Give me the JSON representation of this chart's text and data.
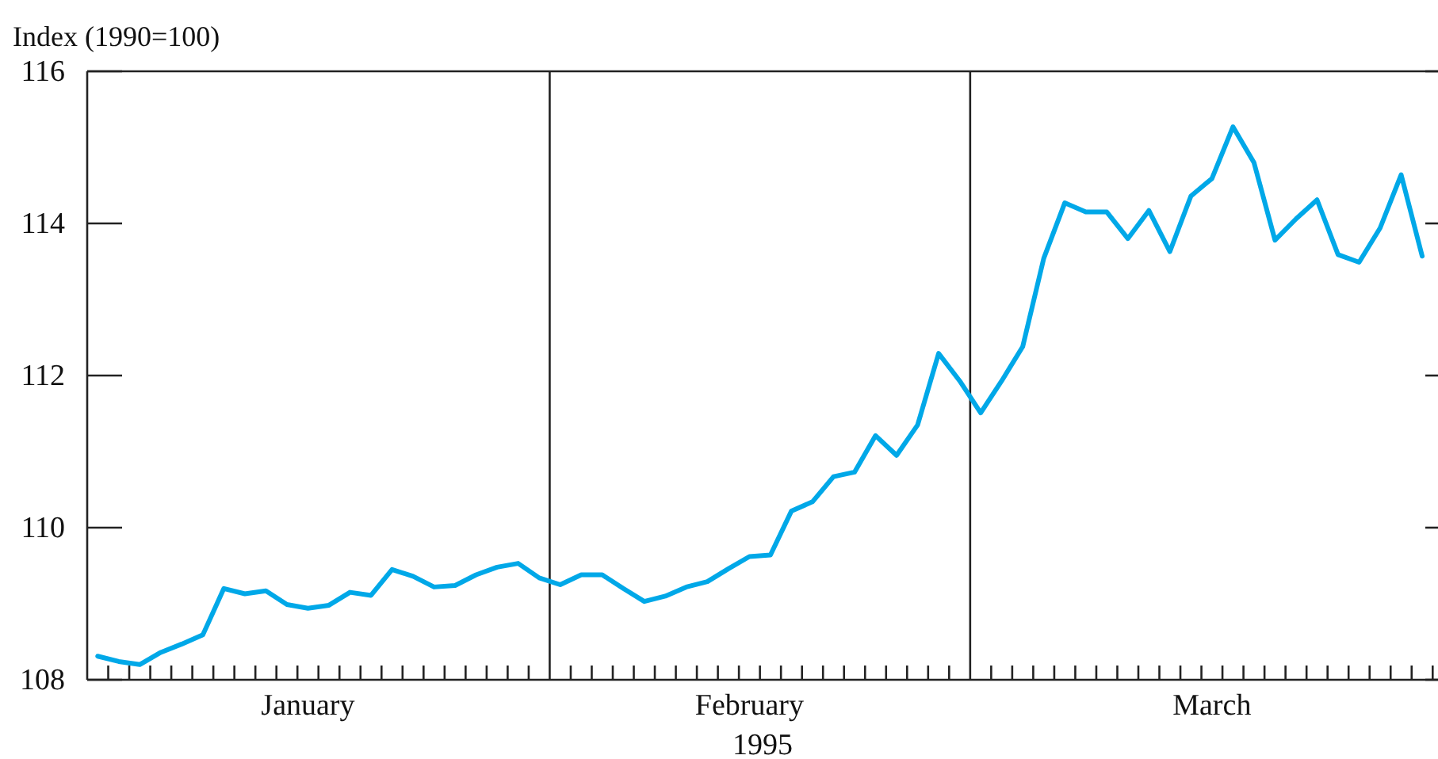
{
  "chart_data": {
    "type": "line",
    "ylabel": "Index (1990=100)",
    "xlabel": "1995",
    "categories": [
      null,
      null,
      null,
      null,
      null,
      null,
      null,
      null,
      null,
      null,
      "January",
      null,
      null,
      null,
      null,
      null,
      null,
      null,
      null,
      null,
      null,
      null,
      null,
      null,
      null,
      null,
      null,
      null,
      null,
      null,
      null,
      "February",
      null,
      null,
      null,
      null,
      null,
      null,
      null,
      null,
      null,
      null,
      null,
      null,
      null,
      null,
      null,
      null,
      null,
      null,
      null,
      null,
      null,
      "March",
      null,
      null,
      null,
      null,
      null,
      null,
      null,
      null,
      null,
      null
    ],
    "series": [
      {
        "color": "#00a8e8",
        "values": [
          108.31,
          108.24,
          108.2,
          108.36,
          108.47,
          108.59,
          109.2,
          109.13,
          109.17,
          108.99,
          108.94,
          108.98,
          109.15,
          109.11,
          109.45,
          109.36,
          109.22,
          109.24,
          109.38,
          109.48,
          109.53,
          109.34,
          109.25,
          109.38,
          109.38,
          109.2,
          109.03,
          109.1,
          109.22,
          109.29,
          109.46,
          109.62,
          109.64,
          110.22,
          110.34,
          110.67,
          110.73,
          111.21,
          110.95,
          111.35,
          112.29,
          111.93,
          111.51,
          111.93,
          112.38,
          113.54,
          114.27,
          114.15,
          114.15,
          113.8,
          114.17,
          113.63,
          114.36,
          114.59,
          115.27,
          114.8,
          113.78,
          114.06,
          114.31,
          113.59,
          113.49,
          113.94,
          114.64,
          113.57
        ]
      }
    ],
    "ylim": [
      108,
      116
    ],
    "yticks": [
      108,
      110,
      112,
      114,
      116
    ],
    "grid": false,
    "marker": "none",
    "line_style": "solid"
  }
}
